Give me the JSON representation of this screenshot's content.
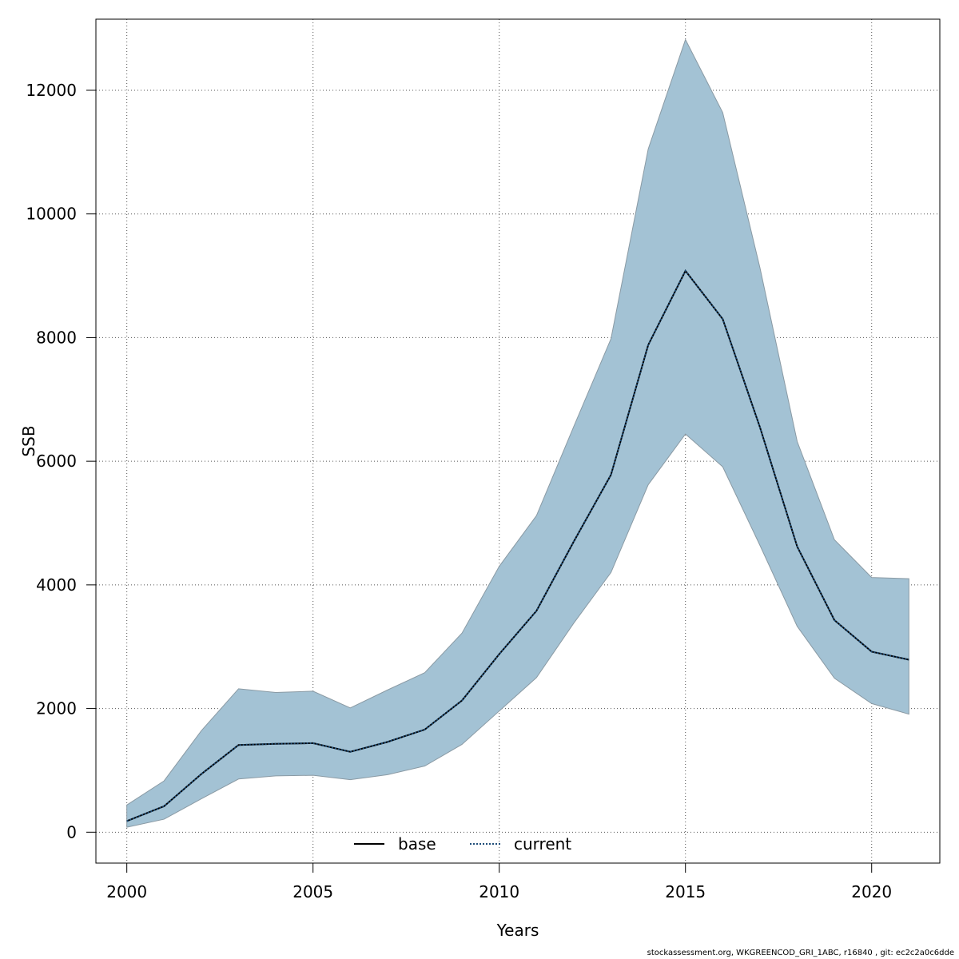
{
  "chart_data": {
    "type": "line",
    "title": "",
    "xlabel": "Years",
    "ylabel": "SSB",
    "xlim": [
      1999.17,
      2021.83
    ],
    "ylim": [
      -500,
      13150
    ],
    "x_ticks": [
      2000,
      2005,
      2010,
      2015,
      2020
    ],
    "y_ticks": [
      0,
      2000,
      4000,
      6000,
      8000,
      10000,
      12000
    ],
    "grid": true,
    "legend_position": "bottom",
    "x": [
      2000,
      2001,
      2002,
      2003,
      2004,
      2005,
      2006,
      2007,
      2008,
      2009,
      2010,
      2011,
      2012,
      2013,
      2014,
      2015,
      2016,
      2017,
      2018,
      2019,
      2020,
      2021
    ],
    "series": [
      {
        "name": "base",
        "style": "solid",
        "color": "#000000",
        "values": [
          180,
          420,
          940,
          1410,
          1430,
          1440,
          1300,
          1460,
          1660,
          2130,
          2880,
          3580,
          4700,
          5780,
          7880,
          9080,
          8300,
          6550,
          4620,
          3430,
          2920,
          2790
        ]
      },
      {
        "name": "current",
        "style": "dotted",
        "color": "#1f4e79",
        "values": [
          180,
          420,
          940,
          1410,
          1430,
          1440,
          1300,
          1460,
          1660,
          2130,
          2880,
          3580,
          4700,
          5780,
          7880,
          9080,
          8300,
          6550,
          4620,
          3430,
          2920,
          2790
        ]
      }
    ],
    "confidence_band": {
      "color": "#a3c2d4",
      "lower": [
        80,
        210,
        540,
        860,
        910,
        920,
        850,
        930,
        1070,
        1420,
        1960,
        2500,
        3380,
        4200,
        5620,
        6440,
        5910,
        4640,
        3330,
        2490,
        2080,
        1910
      ],
      "upper": [
        440,
        830,
        1640,
        2320,
        2260,
        2280,
        2010,
        2300,
        2580,
        3220,
        4300,
        5120,
        6560,
        7980,
        11050,
        12820,
        11640,
        9130,
        6320,
        4730,
        4120,
        4100
      ]
    }
  },
  "footer": "stockassessment.org, WKGREENCOD_GRI_1ABC, r16840 , git: ec2c2a0c6dde"
}
